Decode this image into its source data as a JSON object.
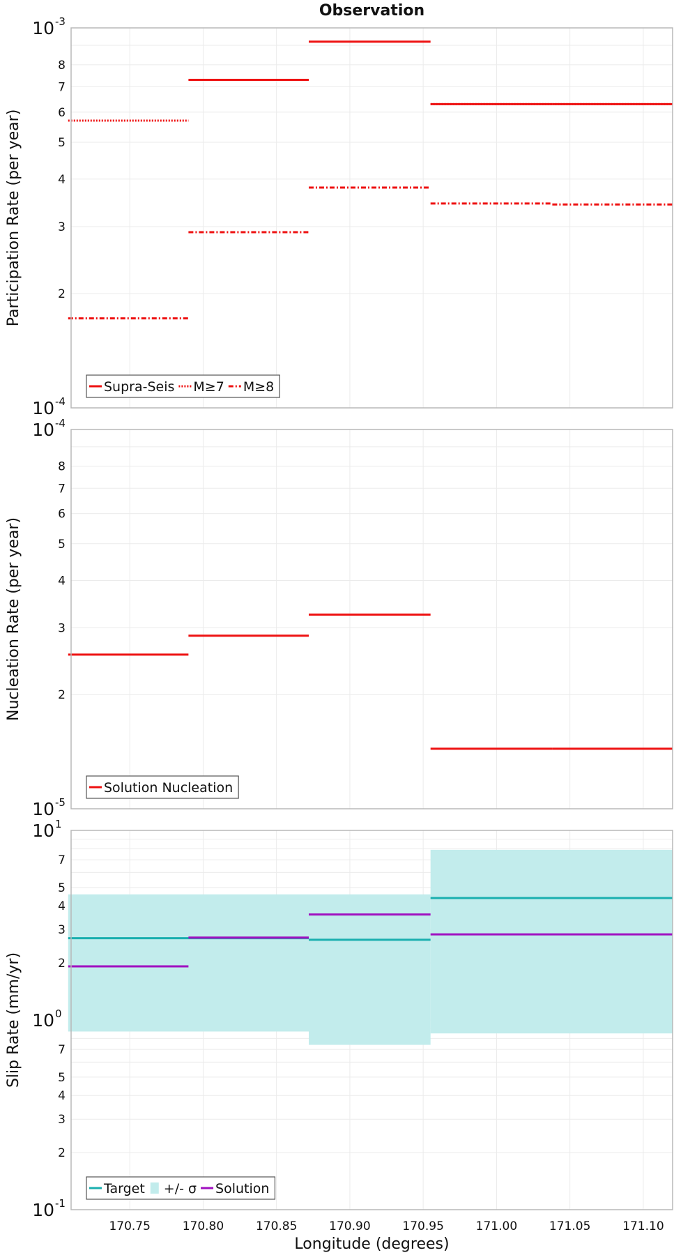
{
  "chart_data": [
    {
      "type": "line",
      "title": "Observation",
      "xlabel": "",
      "ylabel": "Participation Rate (per year)",
      "yscale": "log",
      "ylim": [
        0.0001,
        0.001
      ],
      "xlim": [
        170.71,
        171.12
      ],
      "ytick_labels": [
        "2",
        "3",
        "4",
        "5",
        "6",
        "7",
        "8"
      ],
      "decade_labels": [
        {
          "base": "10",
          "exp": "-3"
        },
        {
          "base": "10",
          "exp": "-4"
        }
      ],
      "grid": true,
      "legend": {
        "position": "bottom-left",
        "entries": [
          "Supra-Seis",
          "M≥7",
          "M≥8"
        ]
      },
      "series": [
        {
          "name": "Supra-Seis",
          "style": "solid",
          "color": "#ee1111",
          "segments": [
            [
              170.79,
              170.872,
              0.00073
            ],
            [
              170.872,
              170.955,
              0.00092
            ],
            [
              170.955,
              171.038,
              0.00063
            ],
            [
              171.038,
              171.12,
              0.00063
            ]
          ]
        },
        {
          "name": "M≥7",
          "style": "dotted",
          "color": "#ee1111",
          "segments": [
            [
              170.708,
              170.79,
              0.00057
            ],
            [
              170.955,
              171.038,
              0.00063
            ],
            [
              171.038,
              171.12,
              0.00063
            ]
          ]
        },
        {
          "name": "M≥8",
          "style": "dashdot",
          "color": "#ee1111",
          "segments": [
            [
              170.708,
              170.79,
              0.000172
            ],
            [
              170.79,
              170.872,
              0.00029
            ],
            [
              170.872,
              170.955,
              0.00038
            ],
            [
              170.955,
              171.038,
              0.000345
            ],
            [
              171.038,
              171.12,
              0.000343
            ]
          ]
        }
      ]
    },
    {
      "type": "line",
      "title": "",
      "xlabel": "",
      "ylabel": "Nucleation Rate (per year)",
      "yscale": "log",
      "ylim": [
        1e-05,
        0.0001
      ],
      "xlim": [
        170.71,
        171.12
      ],
      "ytick_labels": [
        "2",
        "3",
        "4",
        "5",
        "6",
        "7",
        "8"
      ],
      "decade_labels": [
        {
          "base": "10",
          "exp": "-4"
        },
        {
          "base": "10",
          "exp": "-5"
        }
      ],
      "grid": true,
      "legend": {
        "position": "bottom-left",
        "entries": [
          "Solution Nucleation"
        ]
      },
      "series": [
        {
          "name": "Solution Nucleation",
          "style": "solid",
          "color": "#ee1111",
          "segments": [
            [
              170.708,
              170.79,
              2.55e-05
            ],
            [
              170.79,
              170.872,
              2.86e-05
            ],
            [
              170.872,
              170.955,
              3.25e-05
            ],
            [
              170.955,
              171.038,
              1.44e-05
            ],
            [
              171.038,
              171.12,
              1.44e-05
            ]
          ]
        }
      ]
    },
    {
      "type": "line",
      "title": "",
      "xlabel": "Longitude (degrees)",
      "ylabel": "Slip Rate (mm/yr)",
      "yscale": "log",
      "ylim": [
        0.1,
        10
      ],
      "xlim": [
        170.71,
        171.12
      ],
      "xtick_labels": [
        "170.75",
        "170.80",
        "170.85",
        "170.90",
        "170.95",
        "171.00",
        "171.05",
        "171.10"
      ],
      "ytick_labels_upper": [
        "2",
        "3",
        "4",
        "5",
        "7"
      ],
      "ytick_labels_lower": [
        "2",
        "3",
        "4",
        "5",
        "7"
      ],
      "decade_labels": [
        {
          "base": "10",
          "exp": "1"
        },
        {
          "base": "10",
          "exp": "0"
        },
        {
          "base": "10",
          "exp": "-1"
        }
      ],
      "grid": true,
      "legend": {
        "position": "bottom-left",
        "entries": [
          "Target",
          "+/- σ",
          "Solution"
        ]
      },
      "band": {
        "name": "+/- σ",
        "color": "#c2ecec",
        "segments": [
          [
            170.708,
            170.872,
            0.87,
            4.6
          ],
          [
            170.872,
            170.955,
            0.74,
            4.6
          ],
          [
            170.955,
            171.12,
            0.85,
            7.9
          ]
        ]
      },
      "series": [
        {
          "name": "Target",
          "style": "solid",
          "color": "#1aafaf",
          "segments": [
            [
              170.708,
              170.872,
              2.7
            ],
            [
              170.872,
              170.955,
              2.65
            ],
            [
              170.955,
              171.12,
              4.4
            ]
          ]
        },
        {
          "name": "Solution",
          "style": "solid",
          "color": "#a010c0",
          "segments": [
            [
              170.708,
              170.79,
              1.92
            ],
            [
              170.79,
              170.872,
              2.72
            ],
            [
              170.872,
              170.955,
              3.6
            ],
            [
              170.955,
              171.12,
              2.83
            ]
          ]
        }
      ]
    }
  ]
}
